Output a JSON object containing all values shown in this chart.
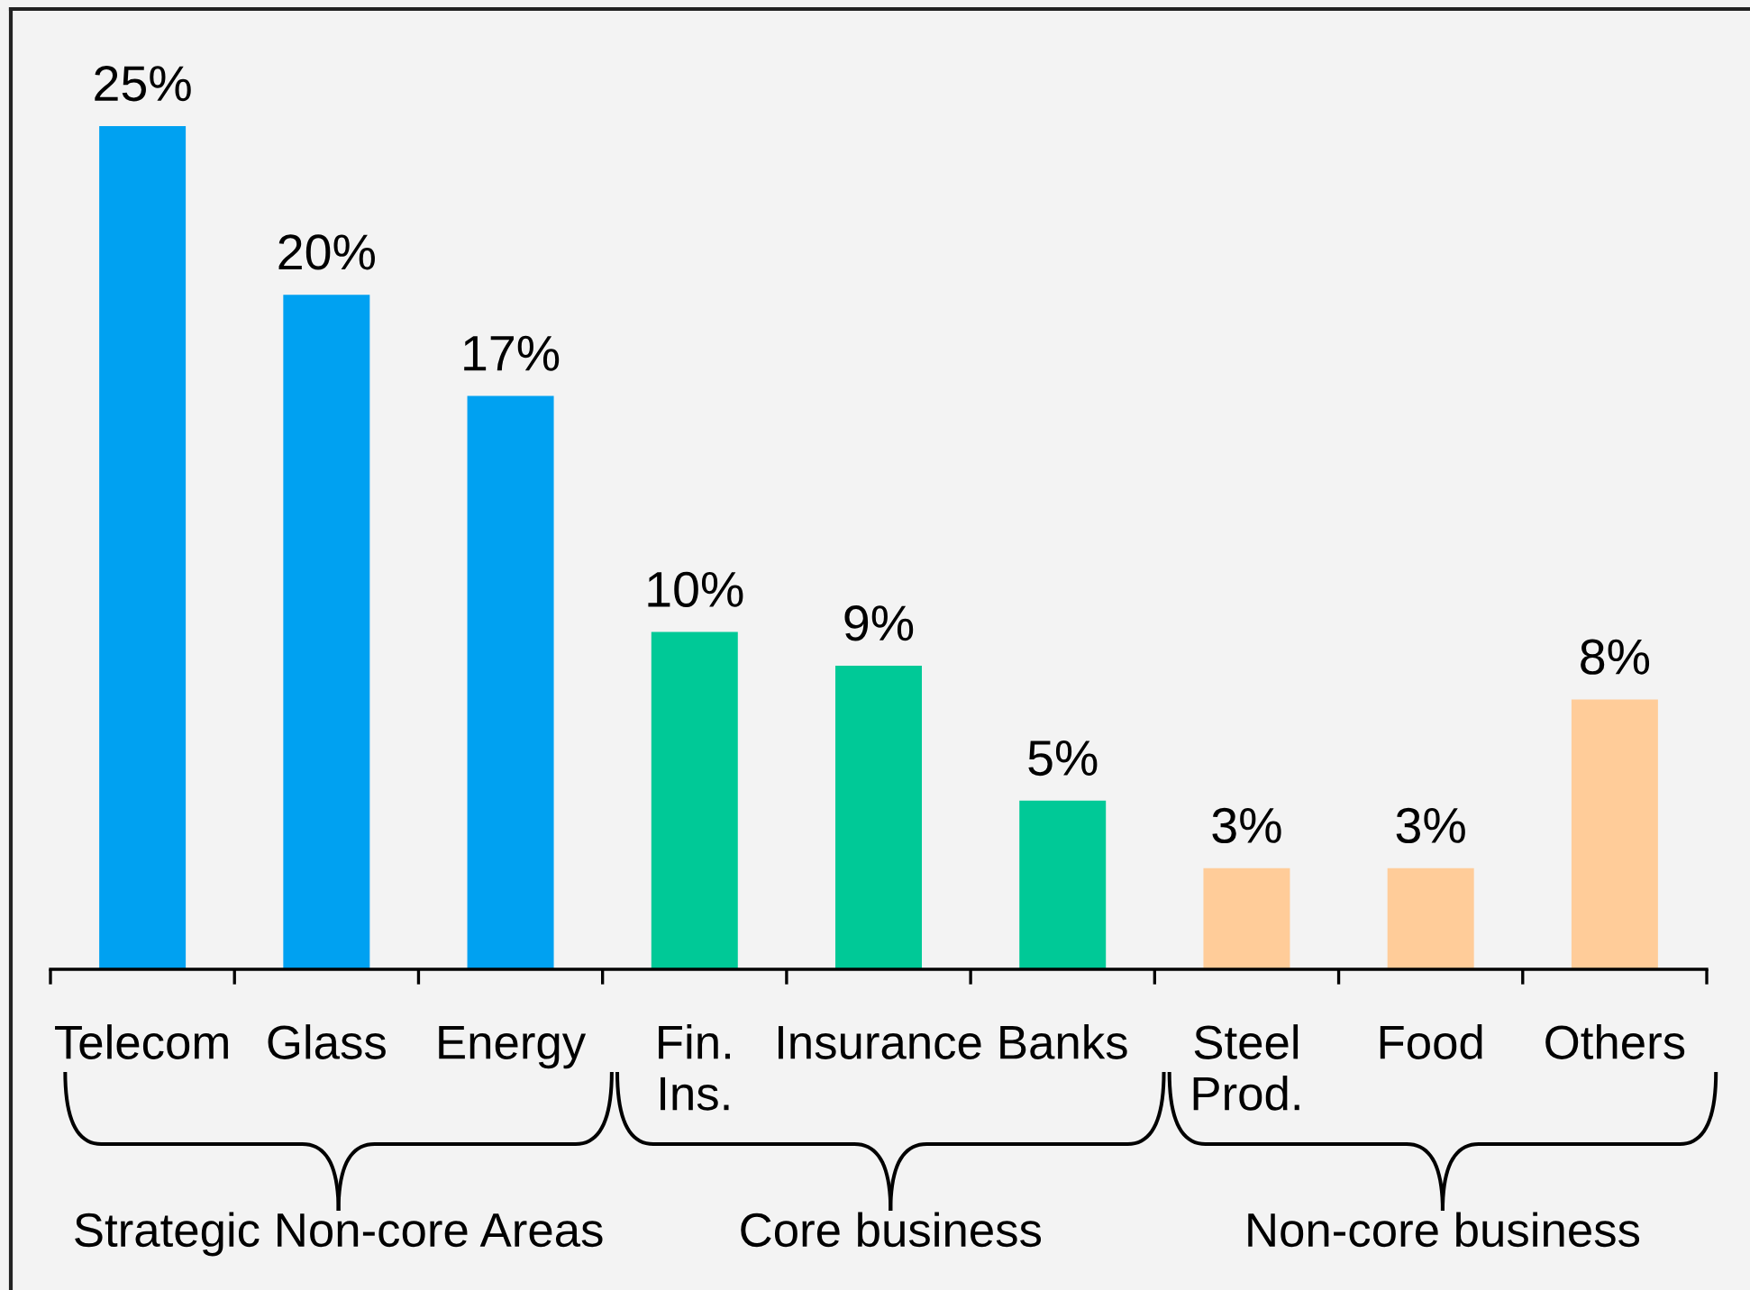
{
  "chart_data": {
    "type": "bar",
    "categories": [
      "Telecom",
      "Glass",
      "Energy",
      "Fin.\nIns.",
      "Insurance",
      "Banks",
      "Steel\nProd.",
      "Food",
      "Others"
    ],
    "values": [
      25,
      20,
      17,
      10,
      9,
      5,
      3,
      3,
      8
    ],
    "value_labels": [
      "25%",
      "20%",
      "17%",
      "10%",
      "9%",
      "5%",
      "3%",
      "3%",
      "8%"
    ],
    "colors": [
      "#00a1f1",
      "#00a1f1",
      "#00a1f1",
      "#00c997",
      "#00c997",
      "#00c997",
      "#ffcc99",
      "#ffcc99",
      "#ffcc99"
    ],
    "annotations": [
      "Strategic Non-core Areas",
      "Core business",
      "Non-core business"
    ]
  }
}
